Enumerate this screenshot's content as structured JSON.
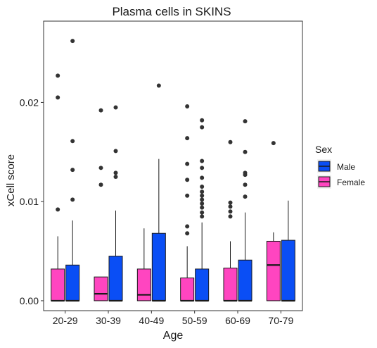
{
  "chart_data": {
    "type": "boxplot",
    "title": "Plasma cells in SKINS",
    "xlabel": "Age",
    "ylabel": "xCell score",
    "ylim": [
      -0.001,
      0.0282
    ],
    "yticks": [
      {
        "value": 0.0,
        "label": "0.00"
      },
      {
        "value": 0.01,
        "label": "0.01"
      },
      {
        "value": 0.02,
        "label": "0.02"
      }
    ],
    "grid": false,
    "categories": [
      "20-29",
      "30-39",
      "40-49",
      "50-59",
      "60-69",
      "70-79"
    ],
    "legend": {
      "title": "Sex",
      "placement": "right",
      "entries": [
        {
          "label": "Male",
          "color": "#0a4ef5"
        },
        {
          "label": "Female",
          "color": "#ff45c0"
        }
      ]
    },
    "series": [
      {
        "name": "Female",
        "color": "#ff45c0",
        "boxes": [
          {
            "category": "20-29",
            "q1": 0.0,
            "median": 0.0,
            "q3": 0.0032,
            "whisker_low": 0.0,
            "whisker_high": 0.0065,
            "outliers": [
              0.0227,
              0.0205,
              0.0092
            ]
          },
          {
            "category": "30-39",
            "q1": 0.0,
            "median": 0.0007,
            "q3": 0.0024,
            "whisker_low": 0.0,
            "whisker_high": 0.0024,
            "outliers": [
              0.0192,
              0.0134,
              0.0117
            ]
          },
          {
            "category": "40-49",
            "q1": 0.0,
            "median": 0.0006,
            "q3": 0.0032,
            "whisker_low": 0.0,
            "whisker_high": 0.0073,
            "outliers": []
          },
          {
            "category": "50-59",
            "q1": 0.0,
            "median": 0.0,
            "q3": 0.0023,
            "whisker_low": 0.0,
            "whisker_high": 0.0055,
            "outliers": [
              0.0196,
              0.0164,
              0.0138,
              0.0122,
              0.0106,
              0.0075,
              0.0068
            ]
          },
          {
            "category": "60-69",
            "q1": 0.0,
            "median": 0.0,
            "q3": 0.0033,
            "whisker_low": 0.0,
            "whisker_high": 0.006,
            "outliers": [
              0.016,
              0.0099,
              0.0095,
              0.009,
              0.0085
            ]
          },
          {
            "category": "70-79",
            "q1": 0.0,
            "median": 0.0036,
            "q3": 0.006,
            "whisker_low": 0.0,
            "whisker_high": 0.0069,
            "outliers": [
              0.0159
            ]
          }
        ]
      },
      {
        "name": "Male",
        "color": "#0a4ef5",
        "boxes": [
          {
            "category": "20-29",
            "q1": 0.0,
            "median": 0.0,
            "q3": 0.0036,
            "whisker_low": 0.0,
            "whisker_high": 0.0081,
            "outliers": [
              0.0262,
              0.0161,
              0.0132,
              0.0102
            ]
          },
          {
            "category": "30-39",
            "q1": 0.0,
            "median": 0.0,
            "q3": 0.0045,
            "whisker_low": 0.0,
            "whisker_high": 0.0091,
            "outliers": [
              0.0195,
              0.0151,
              0.0129,
              0.0125
            ]
          },
          {
            "category": "40-49",
            "q1": 0.0,
            "median": 0.0,
            "q3": 0.0068,
            "whisker_low": 0.0,
            "whisker_high": 0.0143,
            "outliers": [
              0.0217
            ]
          },
          {
            "category": "50-59",
            "q1": 0.0,
            "median": 0.0,
            "q3": 0.0032,
            "whisker_low": 0.0,
            "whisker_high": 0.0079,
            "outliers": [
              0.0182,
              0.0175,
              0.0141,
              0.0134,
              0.0124,
              0.0115,
              0.011,
              0.0106,
              0.0102,
              0.0098,
              0.0094,
              0.0089,
              0.0085
            ]
          },
          {
            "category": "60-69",
            "q1": 0.0,
            "median": 0.0,
            "q3": 0.0041,
            "whisker_low": 0.0,
            "whisker_high": 0.0089,
            "outliers": [
              0.0181,
              0.015,
              0.0129,
              0.0127,
              0.0117,
              0.0105
            ]
          },
          {
            "category": "70-79",
            "q1": 0.0,
            "median": 0.0,
            "q3": 0.0061,
            "whisker_low": 0.0,
            "whisker_high": 0.0101,
            "outliers": []
          }
        ]
      }
    ]
  }
}
